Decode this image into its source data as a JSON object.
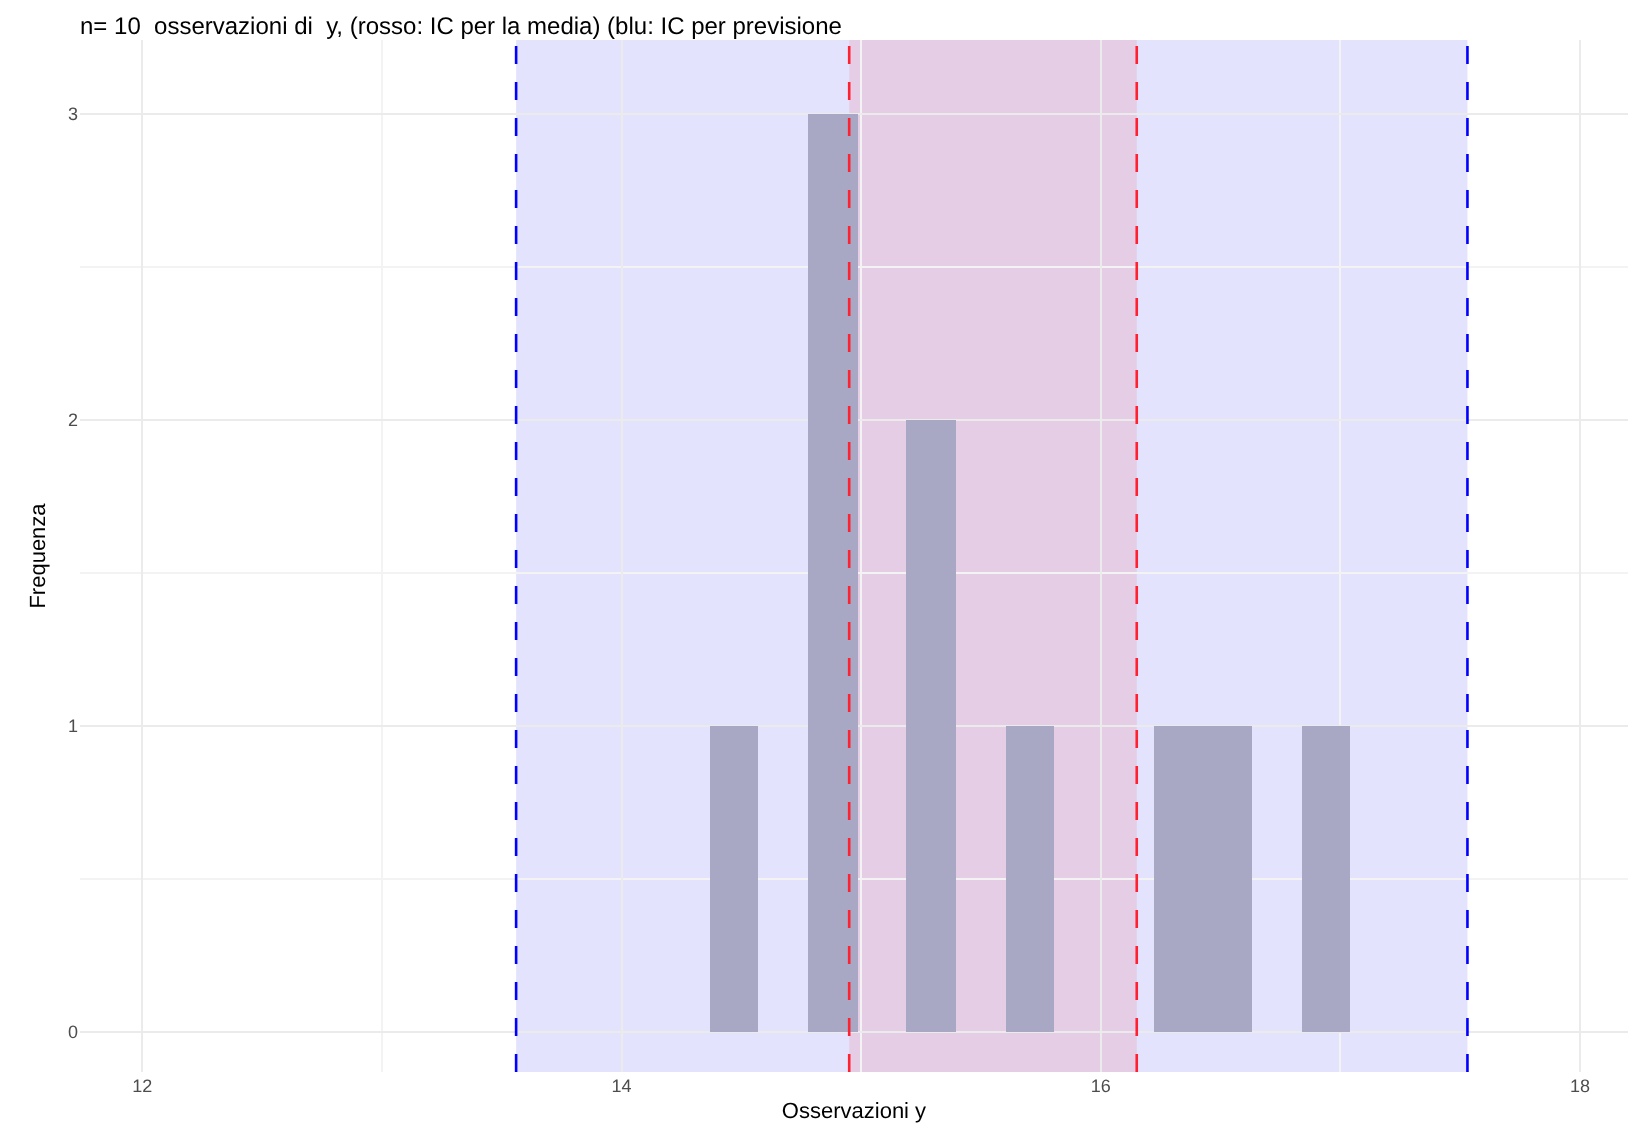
{
  "chart_data": {
    "type": "histogram",
    "title": "n= 10  osservazioni di  y, (rosso: IC per la media) (blu: IC per previsione",
    "xlabel": "Osservazioni y",
    "ylabel": "Frequenza",
    "bins": [
      12.1,
      12.306,
      12.512,
      12.718,
      12.924,
      13.13,
      13.336,
      13.542,
      13.748,
      13.954,
      14.16,
      14.366,
      14.572,
      14.778,
      14.984,
      15.19,
      15.396,
      15.602,
      15.808,
      16.014,
      16.22,
      16.426,
      16.632,
      16.838,
      17.044,
      17.25,
      17.456,
      17.662,
      17.868
    ],
    "values": [
      0,
      0,
      0,
      0,
      0,
      0,
      0,
      0,
      0,
      0,
      0,
      1,
      0,
      3,
      0,
      2,
      0,
      1,
      0,
      0,
      1,
      1,
      0,
      1,
      0,
      0,
      0,
      0
    ],
    "color": "#a8a8c4",
    "bands": [
      {
        "axis": "x",
        "from": 13.56,
        "to": 17.53,
        "color": "#e3e3fd"
      },
      {
        "axis": "x",
        "from": 14.95,
        "to": 16.15,
        "color": "#e5cde6"
      }
    ],
    "ref_lines": [
      {
        "axis": "x",
        "value": 13.56,
        "color": "#0000ff",
        "line_style": "dashed"
      },
      {
        "axis": "x",
        "value": 17.53,
        "color": "#0000ff",
        "line_style": "dashed"
      },
      {
        "axis": "x",
        "value": 14.95,
        "color": "#ff2030",
        "line_style": "dashed"
      },
      {
        "axis": "x",
        "value": 16.15,
        "color": "#ff2030",
        "line_style": "dashed"
      }
    ],
    "xlim": [
      11.74,
      18.2
    ],
    "xticks": [
      12,
      14,
      16,
      18
    ],
    "ylim": [
      -0.13,
      3.24
    ],
    "yticks": [
      0,
      1,
      2,
      3
    ],
    "grid": true
  }
}
